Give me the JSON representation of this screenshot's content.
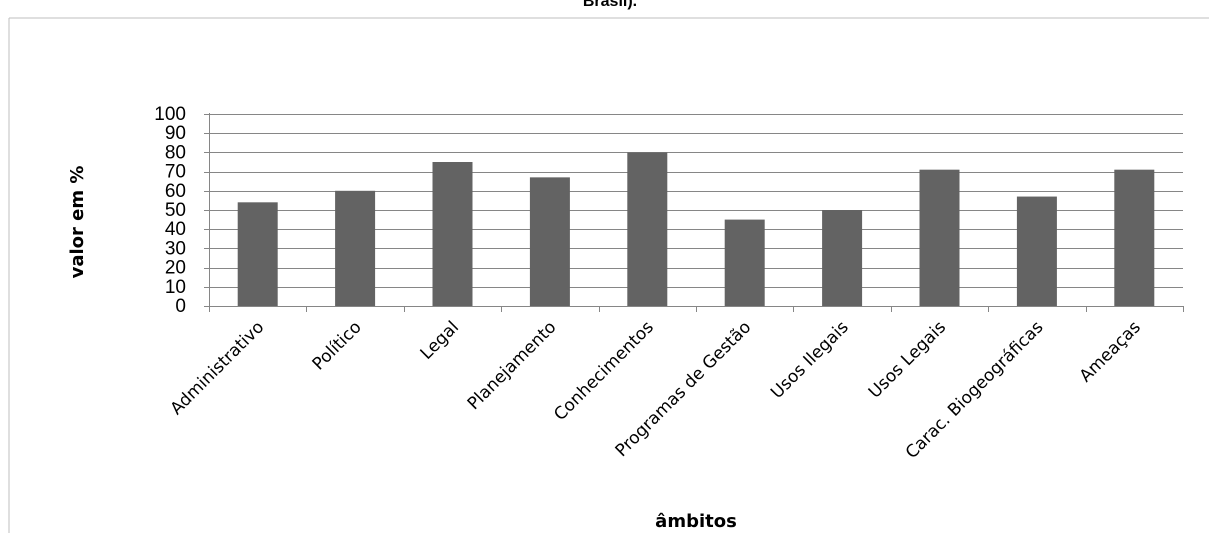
{
  "title_visible_fragment": "Brasil).",
  "chart_data": {
    "type": "bar",
    "title": "Brasil).",
    "xlabel": "âmbitos",
    "ylabel": "valor em %",
    "ylim": [
      0,
      100
    ],
    "yticks": [
      0,
      10,
      20,
      30,
      40,
      50,
      60,
      70,
      80,
      90,
      100
    ],
    "grid": true,
    "legend": "none",
    "bar_color": "#636363",
    "categories": [
      "Administrativo",
      "Político",
      "Legal",
      "Planejamento",
      "Conhecimentos",
      "Programas de Gestão",
      "Usos Ilegais",
      "Usos Legais",
      "Carac. Biogeográficas",
      "Ameaças"
    ],
    "values": [
      54,
      60,
      75,
      67,
      80,
      45,
      50,
      71,
      57,
      71
    ]
  }
}
